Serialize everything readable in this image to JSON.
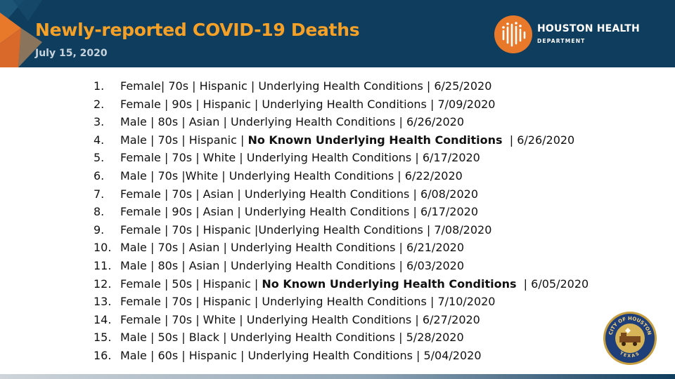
{
  "header": {
    "title": "Newly-reported COVID-19 Deaths",
    "date": "July 15, 2020"
  },
  "logo": {
    "name": "HOUSTON HEALTH",
    "subtitle": "DEPARTMENT",
    "color": "#e8792b"
  },
  "colors": {
    "header_bg": "#0f3d5e",
    "title": "#f5a127",
    "accent_orange": "#e8792b"
  },
  "deaths": [
    {
      "num": "1.",
      "pre": "Female| 70s | Hispanic | ",
      "cond": "Underlying Health Conditions",
      "bold": false,
      "post": " | 6/25/2020"
    },
    {
      "num": "2.",
      "pre": "Female | 90s | Hispanic | ",
      "cond": "Underlying Health Conditions",
      "bold": false,
      "post": " | 7/09/2020"
    },
    {
      "num": "3.",
      "pre": "Male | 80s | Asian | ",
      "cond": "Underlying Health Conditions",
      "bold": false,
      "post": " | 6/26/2020"
    },
    {
      "num": "4.",
      "pre": "Male | 70s | Hispanic | ",
      "cond": "No Known Underlying Health Conditions",
      "bold": true,
      "post": "  | 6/26/2020"
    },
    {
      "num": "5.",
      "pre": "Female | 70s | White | ",
      "cond": "Underlying Health Conditions",
      "bold": false,
      "post": " | 6/17/2020"
    },
    {
      "num": "6.",
      "pre": "Male | 70s |White | ",
      "cond": "Underlying Health Conditions",
      "bold": false,
      "post": " | 6/22/2020"
    },
    {
      "num": "7.",
      "pre": "Female | 70s | Asian | ",
      "cond": "Underlying Health Conditions",
      "bold": false,
      "post": " | 6/08/2020"
    },
    {
      "num": "8.",
      "pre": "Female | 90s | Asian | ",
      "cond": "Underlying Health Conditions",
      "bold": false,
      "post": " | 6/17/2020"
    },
    {
      "num": "9.",
      "pre": "Female | 70s | Hispanic |",
      "cond": "Underlying Health Conditions",
      "bold": false,
      "post": " | 7/08/2020"
    },
    {
      "num": "10.",
      "pre": "Male | 70s | Asian | ",
      "cond": "Underlying Health Conditions",
      "bold": false,
      "post": " | 6/21/2020"
    },
    {
      "num": "11.",
      "pre": "Male | 80s | Asian | ",
      "cond": "Underlying Health Conditions",
      "bold": false,
      "post": " | 6/03/2020"
    },
    {
      "num": "12.",
      "pre": "Female | 50s | Hispanic | ",
      "cond": "No Known Underlying Health Conditions",
      "bold": true,
      "post": "  | 6/05/2020"
    },
    {
      "num": "13.",
      "pre": "Female | 70s | Hispanic | ",
      "cond": "Underlying Health Conditions",
      "bold": false,
      "post": " | 7/10/2020"
    },
    {
      "num": "14.",
      "pre": "Female | 70s | White | ",
      "cond": "Underlying Health Conditions",
      "bold": false,
      "post": " | 6/27/2020"
    },
    {
      "num": "15.",
      "pre": "Male | 50s | Black | ",
      "cond": "Underlying Health Conditions",
      "bold": false,
      "post": " | 5/28/2020"
    },
    {
      "num": "16.",
      "pre": "Male | 60s | Hispanic | ",
      "cond": "Underlying Health Conditions",
      "bold": false,
      "post": " | 5/04/2020"
    }
  ],
  "seal": {
    "icon": "city-of-houston-seal",
    "top_text": "CITY OF HOUSTON",
    "bottom_text": "TEXAS"
  }
}
